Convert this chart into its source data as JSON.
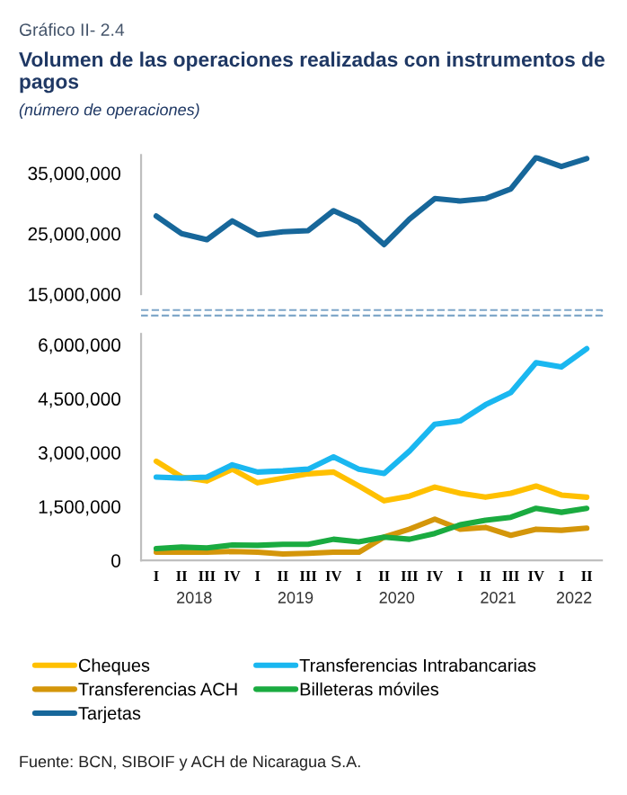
{
  "chart_data": [
    {
      "type": "line",
      "title": "Volumen de las operaciones realizadas con instrumentos de pagos",
      "subtitle": "(número de operaciones)",
      "annotations": [
        "Gráfico II- 2.4"
      ],
      "categories": [
        "I",
        "II",
        "III",
        "IV",
        "I",
        "II",
        "III",
        "IV",
        "I",
        "II",
        "III",
        "IV",
        "I",
        "II",
        "III",
        "IV",
        "I",
        "II"
      ],
      "series": [
        {
          "name": "Tarjetas",
          "color": "#17679a",
          "values": [
            27900000,
            25000000,
            24000000,
            27100000,
            24800000,
            25300000,
            25500000,
            28800000,
            26900000,
            23200000,
            27400000,
            30800000,
            30400000,
            30800000,
            32400000,
            37600000,
            36100000,
            37400000
          ]
        }
      ],
      "ylim": [
        15000000,
        38000000
      ],
      "yticks": [
        {
          "value": 15000000,
          "label": "15,000,000"
        },
        {
          "value": 25000000,
          "label": "25,000,000"
        },
        {
          "value": 35000000,
          "label": "35,000,000"
        }
      ],
      "tick_labels": "y",
      "grid": false,
      "legend": "bottom",
      "marker": "none",
      "line_style": "solid"
    },
    {
      "type": "line",
      "annotations": [
        "2018",
        "2019",
        "2020",
        "2021",
        "2022",
        "Fuente: BCN, SIBOIF y ACH de Nicaragua S.A."
      ],
      "categories": [
        "I",
        "II",
        "III",
        "IV",
        "I",
        "II",
        "III",
        "IV",
        "I",
        "II",
        "III",
        "IV",
        "I",
        "II",
        "III",
        "IV",
        "I",
        "II"
      ],
      "series": [
        {
          "name": "Cheques",
          "color": "#ffc000",
          "values": [
            2760000,
            2320000,
            2210000,
            2540000,
            2160000,
            2290000,
            2410000,
            2460000,
            2070000,
            1660000,
            1790000,
            2040000,
            1870000,
            1760000,
            1870000,
            2070000,
            1820000,
            1760000
          ]
        },
        {
          "name": "Transferencias Intrabancarias",
          "color": "#1ab7f0",
          "values": [
            2320000,
            2290000,
            2320000,
            2660000,
            2460000,
            2490000,
            2540000,
            2880000,
            2540000,
            2420000,
            3040000,
            3790000,
            3880000,
            4330000,
            4670000,
            5500000,
            5380000,
            5890000
          ]
        },
        {
          "name": "Transferencias ACH",
          "color": "#d4960a",
          "values": [
            230000,
            230000,
            230000,
            250000,
            230000,
            180000,
            200000,
            230000,
            230000,
            650000,
            870000,
            1150000,
            870000,
            920000,
            700000,
            870000,
            840000,
            900000
          ]
        },
        {
          "name": "Billeteras móviles",
          "color": "#1aab40",
          "values": [
            330000,
            370000,
            350000,
            430000,
            420000,
            450000,
            450000,
            590000,
            520000,
            650000,
            590000,
            750000,
            990000,
            1120000,
            1200000,
            1450000,
            1340000,
            1450000
          ]
        }
      ],
      "ylim": [
        0,
        6300000
      ],
      "yticks": [
        0,
        {
          "value": 1500000,
          "label": "1,500,000"
        },
        {
          "value": 3000000,
          "label": "3,000,000"
        },
        {
          "value": 4500000,
          "label": "4,500,000"
        },
        {
          "value": 6000000,
          "label": "6,000,000"
        }
      ],
      "grid": false,
      "legend": "bottom",
      "marker": "none",
      "line_style": "solid"
    }
  ]
}
